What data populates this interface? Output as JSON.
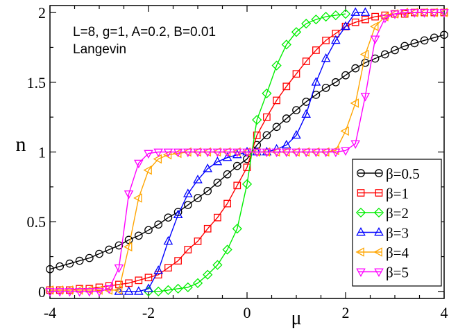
{
  "chart_data": {
    "type": "line",
    "xlabel": "μ",
    "ylabel": "n",
    "xlim": [
      -4,
      4
    ],
    "ylim": [
      -0.05,
      2.05
    ],
    "xticks": [
      -4,
      -2,
      0,
      2,
      4
    ],
    "xtick_labels": [
      "-4",
      "-2",
      "0",
      "2",
      "4"
    ],
    "yticks": [
      0,
      0.5,
      1,
      1.5,
      2
    ],
    "ytick_labels": [
      "0",
      "0.5",
      "1",
      "1.5",
      "2"
    ],
    "grid": false,
    "legend_position": "bottom-right",
    "annotations": [
      "L=8, g=1, A=0.2, B=0.01",
      "Langevin"
    ],
    "series": [
      {
        "name": "β=0.5",
        "color": "#000000",
        "marker": "circle",
        "x": [
          -4.0,
          -3.8,
          -3.6,
          -3.4,
          -3.2,
          -3.0,
          -2.8,
          -2.6,
          -2.4,
          -2.2,
          -2.0,
          -1.8,
          -1.6,
          -1.4,
          -1.2,
          -1.0,
          -0.8,
          -0.6,
          -0.4,
          -0.2,
          0.0,
          0.2,
          0.4,
          0.6,
          0.8,
          1.0,
          1.2,
          1.4,
          1.6,
          1.8,
          2.0,
          2.2,
          2.4,
          2.6,
          2.8,
          3.0,
          3.2,
          3.4,
          3.6,
          3.8,
          4.0
        ],
        "y": [
          0.16,
          0.18,
          0.2,
          0.22,
          0.24,
          0.27,
          0.3,
          0.33,
          0.37,
          0.4,
          0.44,
          0.48,
          0.53,
          0.57,
          0.62,
          0.67,
          0.72,
          0.78,
          0.84,
          0.9,
          0.95,
          1.05,
          1.12,
          1.18,
          1.24,
          1.3,
          1.36,
          1.41,
          1.46,
          1.5,
          1.55,
          1.6,
          1.64,
          1.67,
          1.7,
          1.73,
          1.76,
          1.78,
          1.8,
          1.82,
          1.84
        ]
      },
      {
        "name": "β=1",
        "color": "#ff0000",
        "marker": "square",
        "x": [
          -4.0,
          -3.8,
          -3.6,
          -3.4,
          -3.2,
          -3.0,
          -2.8,
          -2.6,
          -2.4,
          -2.2,
          -2.0,
          -1.8,
          -1.6,
          -1.4,
          -1.2,
          -1.0,
          -0.8,
          -0.6,
          -0.4,
          -0.2,
          0.0,
          0.2,
          0.4,
          0.6,
          0.8,
          1.0,
          1.2,
          1.4,
          1.6,
          1.8,
          2.0,
          2.2,
          2.4,
          2.6,
          2.8,
          3.0,
          3.2,
          3.4,
          3.6,
          3.8,
          4.0
        ],
        "y": [
          0.01,
          0.01,
          0.01,
          0.02,
          0.02,
          0.03,
          0.04,
          0.05,
          0.06,
          0.08,
          0.1,
          0.12,
          0.17,
          0.22,
          0.3,
          0.36,
          0.45,
          0.53,
          0.63,
          0.76,
          0.89,
          1.12,
          1.25,
          1.37,
          1.47,
          1.56,
          1.65,
          1.73,
          1.8,
          1.85,
          1.9,
          1.93,
          1.95,
          1.97,
          1.98,
          1.99,
          1.99,
          2.0,
          2.0,
          2.0,
          2.0
        ]
      },
      {
        "name": "β=2",
        "color": "#00ee00",
        "marker": "diamond",
        "x": [
          -2.0,
          -1.8,
          -1.6,
          -1.4,
          -1.2,
          -1.0,
          -0.8,
          -0.6,
          -0.4,
          -0.2,
          0.0,
          0.2,
          0.4,
          0.6,
          0.8,
          1.0,
          1.2,
          1.4,
          1.6,
          1.8,
          2.0
        ],
        "y": [
          0.0,
          0.0,
          0.01,
          0.02,
          0.03,
          0.06,
          0.12,
          0.19,
          0.3,
          0.45,
          0.77,
          1.23,
          1.42,
          1.62,
          1.77,
          1.86,
          1.92,
          1.95,
          1.97,
          1.98,
          1.99
        ]
      },
      {
        "name": "β=3",
        "color": "#0000ff",
        "marker": "triangle-up",
        "x": [
          -2.6,
          -2.4,
          -2.2,
          -2.0,
          -1.8,
          -1.6,
          -1.4,
          -1.2,
          -1.0,
          -0.8,
          -0.6,
          -0.4,
          -0.2,
          0.0,
          0.2,
          0.4,
          0.6,
          0.8,
          1.0,
          1.2,
          1.4,
          1.6,
          1.8,
          2.0,
          2.2,
          2.4
        ],
        "y": [
          0.0,
          0.0,
          0.0,
          0.02,
          0.15,
          0.36,
          0.55,
          0.7,
          0.8,
          0.88,
          0.93,
          0.96,
          0.98,
          1.0,
          1.0,
          1.0,
          1.02,
          1.05,
          1.12,
          1.27,
          1.5,
          1.67,
          1.8,
          1.9,
          2.0,
          2.0
        ]
      },
      {
        "name": "β=4",
        "color": "#ffa500",
        "marker": "triangle-left",
        "x": [
          -4.0,
          -3.8,
          -3.6,
          -3.4,
          -3.2,
          -3.0,
          -2.8,
          -2.6,
          -2.4,
          -2.2,
          -2.0,
          -1.8,
          -1.6,
          -1.4,
          -1.2,
          -1.0,
          -0.8,
          -0.6,
          -0.4,
          -0.2,
          0.0,
          0.2,
          0.4,
          0.6,
          0.8,
          1.0,
          1.2,
          1.4,
          1.6,
          1.8,
          2.0,
          2.2,
          2.4,
          2.6,
          2.8,
          3.0,
          3.2,
          3.4,
          3.6,
          3.8,
          4.0
        ],
        "y": [
          0.01,
          0.01,
          0.01,
          0.01,
          0.01,
          0.01,
          0.01,
          0.01,
          0.32,
          0.67,
          0.87,
          0.95,
          0.98,
          0.99,
          1.0,
          1.0,
          1.0,
          1.0,
          1.0,
          1.0,
          1.0,
          1.0,
          1.0,
          1.0,
          1.0,
          1.0,
          1.0,
          1.0,
          1.0,
          1.01,
          1.15,
          1.35,
          1.7,
          1.9,
          1.97,
          1.99,
          2.0,
          2.0,
          2.0,
          2.0,
          2.0
        ]
      },
      {
        "name": "β=5",
        "color": "#ff00ff",
        "marker": "triangle-down",
        "x": [
          -4.0,
          -3.8,
          -3.6,
          -3.4,
          -3.2,
          -3.0,
          -2.8,
          -2.6,
          -2.4,
          -2.2,
          -2.0,
          -1.8,
          -1.6,
          -1.4,
          -1.2,
          -1.0,
          -0.8,
          -0.6,
          -0.4,
          -0.2,
          0.0,
          0.2,
          0.4,
          0.6,
          0.8,
          1.0,
          1.2,
          1.4,
          1.6,
          1.8,
          2.0,
          2.2,
          2.4,
          2.6,
          2.8,
          3.0,
          3.2,
          3.4,
          3.6,
          3.8,
          4.0
        ],
        "y": [
          0.0,
          0.0,
          0.0,
          0.0,
          0.0,
          0.0,
          0.02,
          0.17,
          0.7,
          0.92,
          0.99,
          1.0,
          1.0,
          1.0,
          1.0,
          1.0,
          1.0,
          1.0,
          1.0,
          1.0,
          1.0,
          1.0,
          1.0,
          1.0,
          1.0,
          1.0,
          1.0,
          1.0,
          1.0,
          1.0,
          1.01,
          1.06,
          1.4,
          1.81,
          1.96,
          1.99,
          2.0,
          2.0,
          2.0,
          2.0,
          2.0
        ]
      }
    ]
  }
}
